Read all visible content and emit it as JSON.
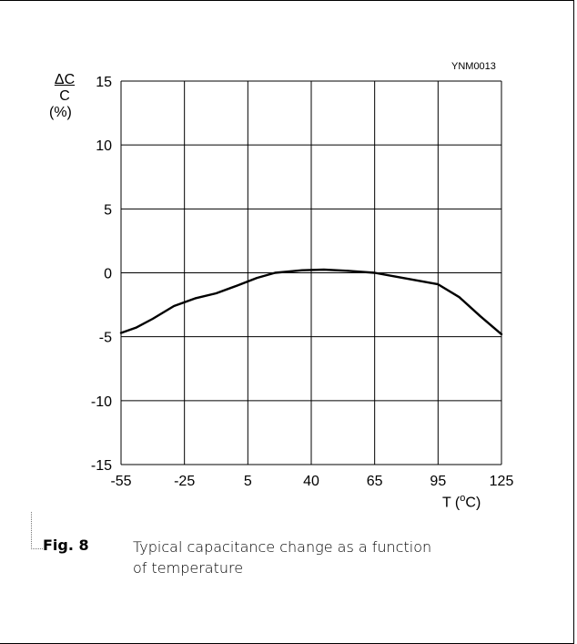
{
  "figure_code": "YNM0013",
  "y_unit": {
    "numerator": "ΔC",
    "denominator": "C",
    "percent": "(%)"
  },
  "x_unit": {
    "prefix": "T  (",
    "degree": "o",
    "suffix": "C)"
  },
  "caption": {
    "figure_number": "Fig. 8",
    "text": "Typical capacitance change as a function of temperature"
  },
  "chart_data": {
    "type": "line",
    "title": "",
    "xlabel": "T (ºC)",
    "ylabel": "ΔC/C (%)",
    "x_ticks": [
      "-55",
      "-25",
      "5",
      "40",
      "65",
      "95",
      "125"
    ],
    "y_ticks": [
      "15",
      "10",
      "5",
      "0",
      "-5",
      "-10",
      "-15"
    ],
    "y_tick_values": [
      15,
      10,
      5,
      0,
      -5,
      -10,
      -15
    ],
    "ylim": [
      -15,
      15
    ],
    "grid": true,
    "series": [
      {
        "x": [
          -55,
          -48,
          -40,
          -30,
          -20,
          -10,
          0,
          10,
          20,
          35,
          45,
          55,
          65,
          75,
          95,
          105,
          115,
          125
        ],
        "y": [
          -4.7,
          -4.3,
          -3.6,
          -2.6,
          -2.0,
          -1.6,
          -1.0,
          -0.4,
          0.0,
          0.2,
          0.25,
          0.15,
          0.0,
          -0.3,
          -0.9,
          -1.9,
          -3.4,
          -4.8
        ]
      }
    ],
    "series_note": "",
    "x_positions_note": ""
  }
}
